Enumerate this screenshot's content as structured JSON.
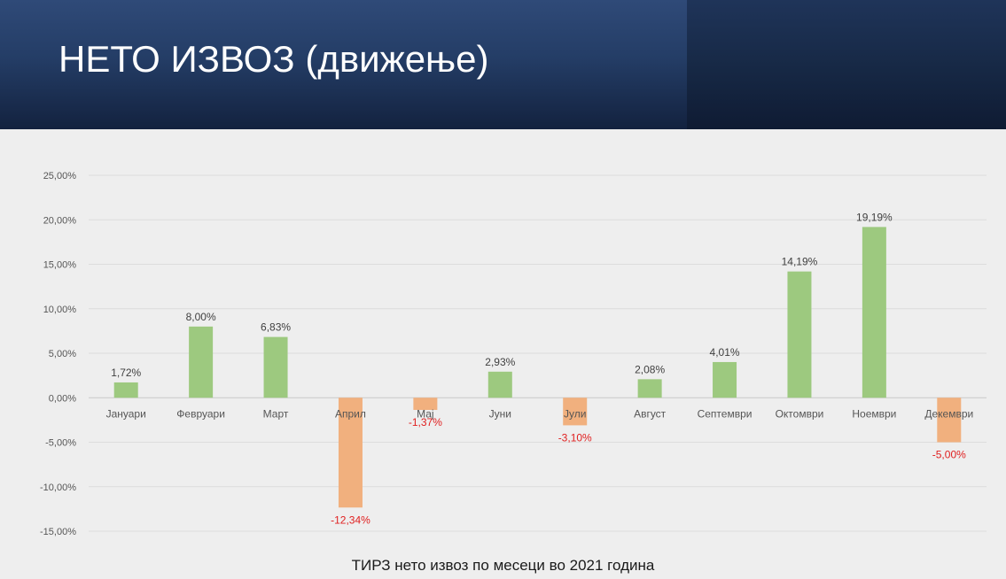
{
  "slide": {
    "title": "НЕТО ИЗВОЗ (движење)"
  },
  "chart_data": {
    "type": "bar",
    "title": "",
    "xlabel": "ТИРЗ нето извоз по месеци во 2021 година",
    "ylabel": "",
    "categories": [
      "Јануари",
      "Февруари",
      "Март",
      "Април",
      "Мај",
      "Јуни",
      "Јули",
      "Август",
      "Септември",
      "Октомври",
      "Ноември",
      "Декември"
    ],
    "values": [
      1.72,
      8.0,
      6.83,
      -12.34,
      -1.37,
      2.93,
      -3.1,
      2.08,
      4.01,
      14.19,
      19.19,
      -5.0
    ],
    "data_labels": [
      "1,72%",
      "8,00%",
      "6,83%",
      "-12,34%",
      "-1,37%",
      "2,93%",
      "-3,10%",
      "2,08%",
      "4,01%",
      "14,19%",
      "19,19%",
      "-5,00%"
    ],
    "yticks": [
      25,
      20,
      15,
      10,
      5,
      0,
      -5,
      -10,
      -15
    ],
    "ytick_labels": [
      "25,00%",
      "20,00%",
      "15,00%",
      "10,00%",
      "5,00%",
      "0,00%",
      "-5,00%",
      "-10,00%",
      "-15,00%"
    ],
    "ylim": [
      -15,
      25
    ],
    "grid": true,
    "colors": {
      "positive": "#9dc97f",
      "negative": "#f1b07e",
      "positive_label": "#404040",
      "negative_label": "#e02020"
    }
  }
}
